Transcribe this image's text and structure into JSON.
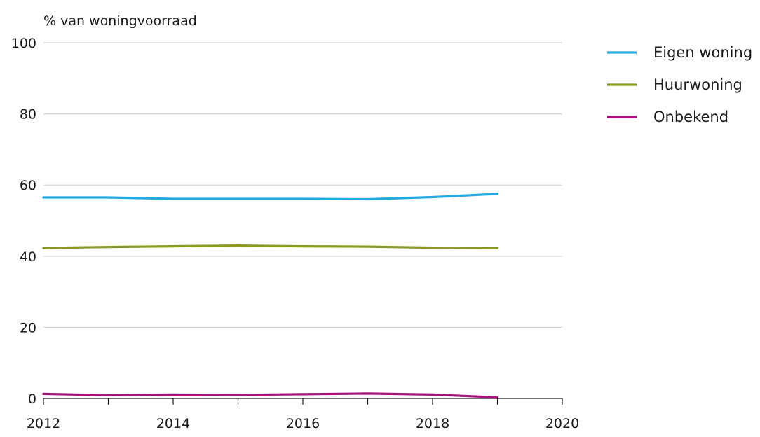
{
  "chart_data": {
    "type": "line",
    "ylabel": "% van woningvoorraad",
    "xlabel": "",
    "x": [
      2012,
      2013,
      2014,
      2015,
      2016,
      2017,
      2018,
      2019
    ],
    "xlim": [
      2012,
      2020
    ],
    "ylim": [
      0,
      100
    ],
    "xticks": [
      2012,
      2014,
      2016,
      2018,
      2020
    ],
    "yticks": [
      0,
      20,
      40,
      60,
      80,
      100
    ],
    "grid": "horizontal",
    "legend_position": "right",
    "series": [
      {
        "name": "Eigen woning",
        "color": "#27a9e1",
        "values": [
          56.5,
          56.5,
          56.1,
          56.1,
          56.1,
          56.0,
          56.6,
          57.5
        ]
      },
      {
        "name": "Huurwoning",
        "color": "#8c9a1f",
        "values": [
          42.3,
          42.6,
          42.8,
          43.0,
          42.8,
          42.7,
          42.4,
          42.3
        ]
      },
      {
        "name": "Onbekend",
        "color": "#a7137a",
        "values": [
          1.3,
          0.9,
          1.1,
          1.0,
          1.2,
          1.4,
          1.1,
          0.3
        ]
      }
    ]
  }
}
